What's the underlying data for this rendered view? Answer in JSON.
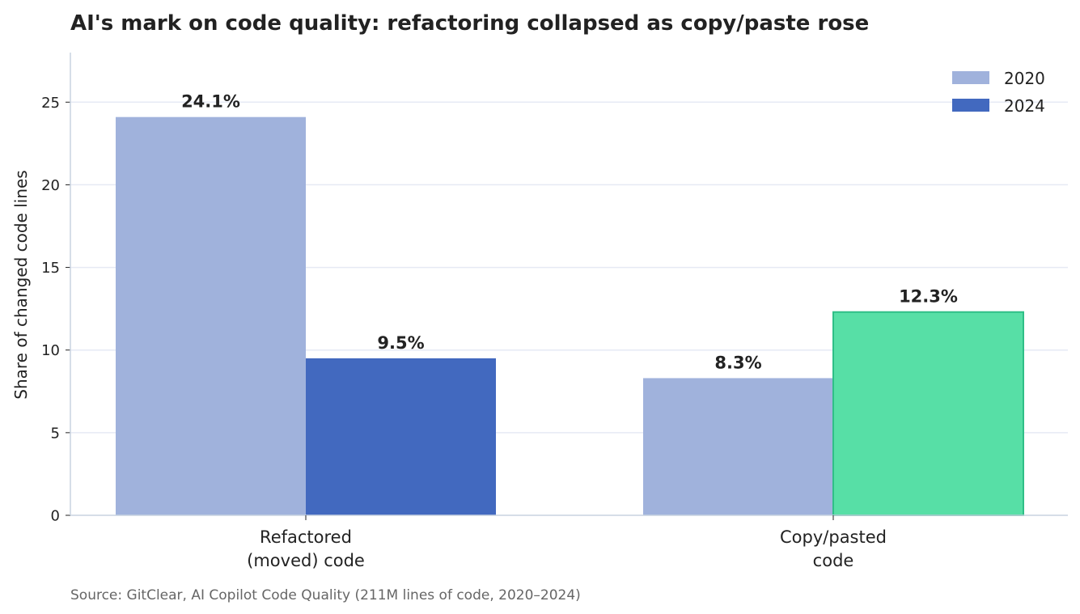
{
  "chart_data": {
    "type": "bar",
    "title": "AI's mark on code quality: refactoring collapsed as copy/paste rose",
    "ylabel": "Share of changed code lines",
    "xlabel": "",
    "ylim": [
      0,
      28
    ],
    "yticks": [
      0,
      5,
      10,
      15,
      20,
      25
    ],
    "grid": true,
    "legend_position": "top-right",
    "categories": [
      [
        "Refactored",
        "(moved) code"
      ],
      [
        "Copy/pasted",
        "code"
      ]
    ],
    "series": [
      {
        "name": "2020",
        "values": [
          24.1,
          8.3
        ],
        "labels": [
          "24.1%",
          "8.3%"
        ],
        "color": "#a0b2dc"
      },
      {
        "name": "2024",
        "values": [
          9.5,
          12.3
        ],
        "labels": [
          "9.5%",
          "12.3%"
        ],
        "color": "#4269bf",
        "point_colors": [
          "#4269bf",
          "#57dfa6"
        ],
        "point_edge_colors": [
          null,
          "#2fbf87"
        ]
      }
    ],
    "source": "Source: GitClear, AI Copilot Code Quality (211M lines of code, 2020–2024)"
  }
}
